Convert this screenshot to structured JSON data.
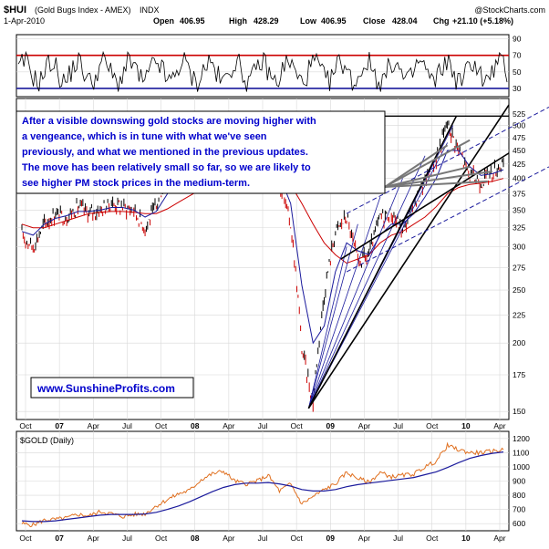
{
  "header": {
    "symbol": "$HUI",
    "name": "(Gold Bugs Index - AMEX)",
    "exchange": "INDX",
    "date": "1-Apr-2010",
    "copyright": "@StockCharts.com",
    "open_label": "Open",
    "open": "406.95",
    "high_label": "High",
    "high": "428.29",
    "low_label": "Low",
    "low": "406.95",
    "close_label": "Close",
    "close": "428.04",
    "chg_label": "Chg",
    "chg": "+21.10 (+5.18%)"
  },
  "annotation": {
    "lines": [
      "After a visible downswing gold stocks are moving higher with",
      "a vengeance, which is in tune with what we've seen",
      "previously, and what we mentioned in the previous updates.",
      "The move has been relatively small so far, so we are likely to",
      "see higher PM stock prices in the medium-term."
    ],
    "website": "www.SunshineProfits.com"
  },
  "colors": {
    "price": "#000000",
    "price_down": "#cc0000",
    "ma_blue": "#1a1a9c",
    "ma_red": "#cc0000",
    "rsi_line": "#cc0000",
    "rsi_low": "#1a1a9c",
    "annotation_text": "#0000cc",
    "gold_line": "#e07020",
    "gold_ma": "#1a1a9c",
    "grid": "#d8d8d8"
  },
  "chart_data": [
    {
      "type": "line",
      "panel": "rsi",
      "y_ticks": [
        "90",
        "70",
        "50",
        "30"
      ],
      "ylim": [
        20,
        95
      ],
      "overbought": 70,
      "oversold": 30
    },
    {
      "type": "line",
      "panel": "price",
      "title": "$HUI (Gold Bugs Index - AMEX) INDX",
      "scale": "log",
      "ylim": [
        145,
        560
      ],
      "y_ticks": [
        525,
        500,
        475,
        450,
        425,
        400,
        375,
        350,
        325,
        300,
        275,
        250,
        225,
        200,
        175,
        150
      ],
      "x_ticks": [
        "Oct",
        "07",
        "Apr",
        "Jul",
        "Oct",
        "08",
        "Apr",
        "Jul",
        "Oct",
        "09",
        "Apr",
        "Jul",
        "Oct",
        "10",
        "Apr"
      ],
      "x": [
        "2006-09",
        "2006-10",
        "2006-11",
        "2006-12",
        "2007-01",
        "2007-02",
        "2007-03",
        "2007-04",
        "2007-05",
        "2007-06",
        "2007-07",
        "2007-08",
        "2007-09",
        "2007-10",
        "2007-11",
        "2007-12",
        "2008-01",
        "2008-02",
        "2008-03",
        "2008-04",
        "2008-05",
        "2008-06",
        "2008-07",
        "2008-08",
        "2008-09",
        "2008-10",
        "2008-11",
        "2008-12",
        "2009-01",
        "2009-02",
        "2009-03",
        "2009-04",
        "2009-05",
        "2009-06",
        "2009-07",
        "2009-08",
        "2009-09",
        "2009-10",
        "2009-11",
        "2009-12",
        "2010-01",
        "2010-02",
        "2010-03",
        "2010-04"
      ],
      "series": [
        {
          "values": [
            315,
            300,
            330,
            345,
            340,
            355,
            345,
            350,
            360,
            355,
            350,
            325,
            355,
            410,
            435,
            400,
            420,
            475,
            445,
            400,
            395,
            435,
            460,
            390,
            330,
            195,
            155,
            245,
            320,
            340,
            280,
            290,
            340,
            345,
            320,
            355,
            395,
            435,
            505,
            450,
            405,
            395,
            410,
            428
          ]
        },
        {
          "values": [
            330,
            325,
            325,
            330,
            335,
            340,
            345,
            347,
            348,
            348,
            347,
            345,
            345,
            352,
            362,
            372,
            382,
            392,
            402,
            408,
            410,
            412,
            412,
            405,
            390,
            360,
            330,
            305,
            290,
            280,
            285,
            290,
            305,
            315,
            320,
            330,
            340,
            355,
            375,
            385,
            390,
            392,
            395,
            400
          ]
        },
        {
          "values": [
            320,
            315,
            330,
            338,
            342,
            348,
            348,
            350,
            354,
            354,
            350,
            340,
            348,
            375,
            405,
            415,
            418,
            435,
            440,
            420,
            405,
            418,
            430,
            405,
            360,
            255,
            200,
            215,
            270,
            305,
            295,
            290,
            315,
            330,
            330,
            345,
            370,
            400,
            450,
            450,
            420,
            405,
            408,
            415
          ]
        }
      ]
    },
    {
      "type": "line",
      "panel": "gold",
      "title": "$GOLD (Daily)",
      "ylim": [
        550,
        1250
      ],
      "y_ticks": [
        1200,
        1100,
        1000,
        900,
        800,
        700,
        600
      ],
      "x": [
        "2006-09",
        "2006-10",
        "2006-11",
        "2006-12",
        "2007-01",
        "2007-02",
        "2007-03",
        "2007-04",
        "2007-05",
        "2007-06",
        "2007-07",
        "2007-08",
        "2007-09",
        "2007-10",
        "2007-11",
        "2007-12",
        "2008-01",
        "2008-02",
        "2008-03",
        "2008-04",
        "2008-05",
        "2008-06",
        "2008-07",
        "2008-08",
        "2008-09",
        "2008-10",
        "2008-11",
        "2008-12",
        "2009-01",
        "2009-02",
        "2009-03",
        "2009-04",
        "2009-05",
        "2009-06",
        "2009-07",
        "2009-08",
        "2009-09",
        "2009-10",
        "2009-11",
        "2009-12",
        "2010-01",
        "2010-02",
        "2010-03",
        "2010-04"
      ],
      "series": [
        {
          "name": "$GOLD (Daily)",
          "values": [
            600,
            590,
            625,
            630,
            640,
            665,
            655,
            685,
            670,
            650,
            665,
            670,
            725,
            770,
            810,
            835,
            910,
            950,
            970,
            900,
            880,
            900,
            940,
            830,
            880,
            740,
            790,
            840,
            880,
            960,
            920,
            890,
            960,
            930,
            940,
            950,
            1000,
            1040,
            1150,
            1120,
            1100,
            1100,
            1110,
            1120
          ]
        },
        {
          "values": [
            620,
            615,
            615,
            620,
            630,
            640,
            650,
            660,
            665,
            665,
            665,
            668,
            680,
            700,
            725,
            755,
            790,
            825,
            855,
            875,
            885,
            885,
            890,
            880,
            865,
            840,
            830,
            830,
            840,
            860,
            875,
            885,
            895,
            905,
            915,
            925,
            945,
            965,
            995,
            1030,
            1060,
            1080,
            1095,
            1105
          ]
        }
      ]
    }
  ]
}
